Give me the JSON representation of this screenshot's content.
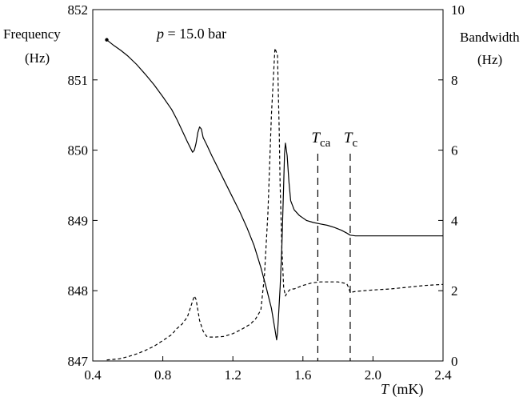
{
  "chart_data": {
    "type": "line",
    "annotation_pressure": {
      "symbol": "p",
      "text": " = 15.0 bar"
    },
    "ylabel_left_line1": "Frequency",
    "ylabel_left_line2": "(Hz)",
    "ylabel_right_line1": "Bandwidth",
    "ylabel_right_line2": "(Hz)",
    "xlabel": {
      "symbol": "T",
      "unit": " (mK)"
    },
    "xlim": [
      0.4,
      2.4
    ],
    "ylim_left": [
      847,
      852
    ],
    "ylim_right": [
      0,
      10
    ],
    "x_ticks": [
      "0.4",
      "0.8",
      "1.2",
      "1.6",
      "2.0",
      "2.4"
    ],
    "y_left_ticks": [
      "847",
      "848",
      "849",
      "850",
      "851",
      "852"
    ],
    "y_right_ticks": [
      "0",
      "2",
      "4",
      "6",
      "8",
      "10"
    ],
    "markers": [
      {
        "name": "T_ca",
        "base": "T",
        "sub": "ca",
        "x": 1.685
      },
      {
        "name": "T_c",
        "base": "T",
        "sub": "c",
        "x": 1.87
      }
    ],
    "grid": false,
    "colors": {
      "line": "#000000",
      "background": "#ffffff"
    },
    "series": [
      {
        "axis": "left",
        "style": "solid",
        "x": [
          0.48,
          0.52,
          0.56,
          0.6,
          0.65,
          0.7,
          0.75,
          0.8,
          0.85,
          0.88,
          0.91,
          0.94,
          0.96,
          0.97,
          0.98,
          0.99,
          1.0,
          1.01,
          1.02,
          1.03,
          1.05,
          1.08,
          1.12,
          1.16,
          1.2,
          1.24,
          1.28,
          1.32,
          1.36,
          1.39,
          1.42,
          1.44,
          1.45,
          1.455,
          1.46,
          1.47,
          1.48,
          1.49,
          1.495,
          1.5,
          1.51,
          1.52,
          1.53,
          1.55,
          1.58,
          1.62,
          1.66,
          1.7,
          1.74,
          1.78,
          1.82,
          1.85,
          1.87,
          1.9,
          2.0,
          2.1,
          2.2,
          2.3,
          2.4
        ],
        "y": [
          851.57,
          851.49,
          851.42,
          851.34,
          851.22,
          851.08,
          850.93,
          850.76,
          850.58,
          850.44,
          850.28,
          850.12,
          850.02,
          849.97,
          850.0,
          850.1,
          850.25,
          850.33,
          850.3,
          850.18,
          850.08,
          849.92,
          849.72,
          849.52,
          849.32,
          849.12,
          848.9,
          848.65,
          848.33,
          848.05,
          847.75,
          847.45,
          847.3,
          847.4,
          847.6,
          848.05,
          848.65,
          849.5,
          849.95,
          850.1,
          849.92,
          849.55,
          849.28,
          849.15,
          849.07,
          849.0,
          848.97,
          848.95,
          848.93,
          848.9,
          848.86,
          848.82,
          848.79,
          848.78,
          848.78,
          848.78,
          848.78,
          848.78,
          848.78
        ]
      },
      {
        "axis": "right",
        "style": "dashed",
        "x": [
          0.48,
          0.55,
          0.6,
          0.65,
          0.7,
          0.75,
          0.8,
          0.85,
          0.88,
          0.91,
          0.94,
          0.96,
          0.98,
          0.99,
          1.0,
          1.01,
          1.03,
          1.05,
          1.07,
          1.1,
          1.15,
          1.2,
          1.25,
          1.3,
          1.33,
          1.36,
          1.38,
          1.4,
          1.42,
          1.44,
          1.455,
          1.465,
          1.47,
          1.48,
          1.49,
          1.5,
          1.51,
          1.53,
          1.55,
          1.6,
          1.65,
          1.7,
          1.75,
          1.8,
          1.85,
          1.86,
          1.87,
          1.9,
          2.0,
          2.1,
          2.2,
          2.3,
          2.4
        ],
        "y": [
          0.03,
          0.06,
          0.12,
          0.2,
          0.3,
          0.42,
          0.58,
          0.75,
          0.92,
          1.05,
          1.25,
          1.55,
          1.85,
          1.75,
          1.45,
          1.15,
          0.85,
          0.7,
          0.68,
          0.68,
          0.7,
          0.78,
          0.9,
          1.05,
          1.2,
          1.45,
          2.4,
          4.2,
          7.0,
          8.9,
          8.7,
          6.5,
          5.0,
          3.2,
          2.1,
          1.85,
          1.95,
          2.05,
          2.05,
          2.15,
          2.22,
          2.25,
          2.25,
          2.25,
          2.2,
          2.1,
          1.95,
          1.98,
          2.02,
          2.05,
          2.1,
          2.15,
          2.18
        ]
      }
    ]
  }
}
